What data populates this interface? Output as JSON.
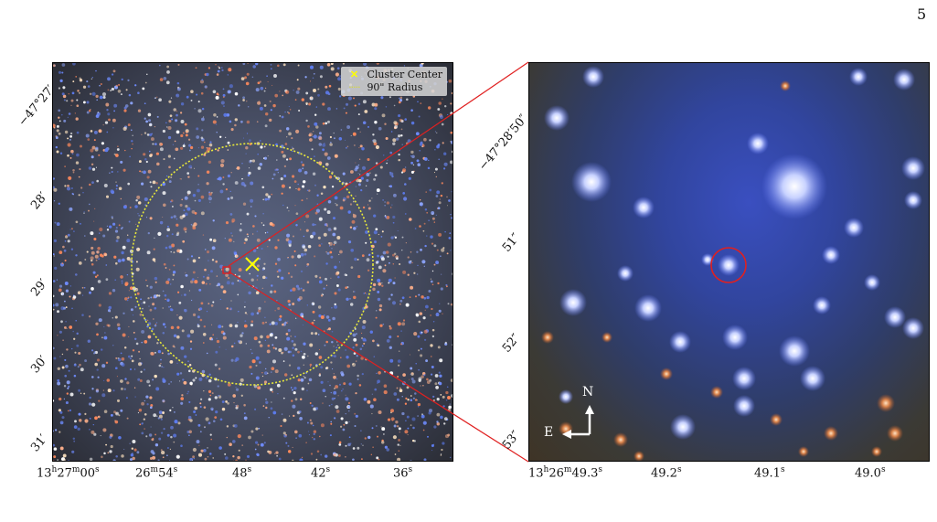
{
  "page_number": "5",
  "left_panel": {
    "legend": {
      "cluster_center_label": "Cluster Center",
      "radius_label": "90\" Radius",
      "cluster_center_color": "#ffff00",
      "radius_color": "#e8e83a"
    },
    "y_ticks": [
      "−47°27′",
      "28′",
      "29′",
      "30′",
      "31′"
    ],
    "x_ticks": [
      "13h27m00s",
      "26m54s",
      "48s",
      "42s",
      "36s"
    ]
  },
  "right_panel": {
    "y_ticks": [
      "−47°28′50″",
      "51″",
      "52″",
      "53″"
    ],
    "x_ticks": [
      "13h26m49.3s",
      "49.2s",
      "49.1s",
      "49.0s"
    ],
    "compass": {
      "north": "N",
      "east": "E"
    },
    "target_circle_color": "#e02020"
  },
  "colors": {
    "connector": "#e02020",
    "zoom_box": "#e02020"
  }
}
